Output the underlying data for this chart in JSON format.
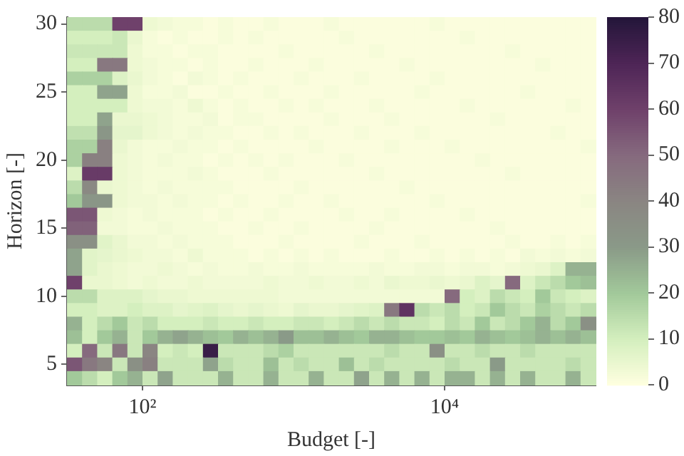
{
  "chart_data": {
    "type": "heatmap",
    "xlabel": "Budget [-]",
    "ylabel": "Horizon [-]",
    "log": "x",
    "xlim": [
      31.6,
      100000
    ],
    "xticks": [
      {
        "value": 100,
        "label": "10²"
      },
      {
        "value": 10000,
        "label": "10⁴"
      }
    ],
    "ylim": [
      3.5,
      30.5
    ],
    "yticks": [
      5,
      10,
      15,
      20,
      25,
      30
    ],
    "clim": [
      0,
      80
    ],
    "cticks": [
      0,
      10,
      20,
      30,
      40,
      50,
      60,
      70,
      80
    ],
    "cells": [
      [
        15,
        15,
        15,
        60,
        60,
        4,
        3,
        2,
        2,
        1,
        2,
        1,
        1,
        2,
        1,
        1,
        1,
        2,
        1,
        1,
        1,
        1,
        1,
        1,
        2,
        1,
        1,
        1,
        1,
        1,
        1,
        1,
        1,
        1,
        1
      ],
      [
        10,
        10,
        10,
        12,
        5,
        2,
        1,
        2,
        1,
        1,
        2,
        1,
        2,
        1,
        1,
        1,
        1,
        1,
        2,
        1,
        1,
        1,
        1,
        1,
        1,
        1,
        2,
        1,
        1,
        1,
        1,
        1,
        1,
        1,
        1
      ],
      [
        12,
        12,
        12,
        12,
        4,
        2,
        2,
        1,
        2,
        2,
        1,
        1,
        1,
        1,
        2,
        1,
        1,
        1,
        1,
        1,
        2,
        1,
        1,
        1,
        1,
        1,
        1,
        1,
        1,
        2,
        1,
        1,
        1,
        1,
        1
      ],
      [
        10,
        10,
        45,
        45,
        4,
        3,
        2,
        2,
        1,
        2,
        1,
        1,
        2,
        1,
        1,
        1,
        2,
        1,
        1,
        1,
        1,
        1,
        2,
        1,
        1,
        1,
        1,
        1,
        1,
        1,
        1,
        2,
        1,
        1,
        1
      ],
      [
        18,
        18,
        18,
        8,
        5,
        3,
        2,
        1,
        3,
        2,
        1,
        2,
        1,
        1,
        1,
        2,
        1,
        1,
        1,
        2,
        1,
        1,
        1,
        1,
        2,
        1,
        1,
        1,
        1,
        1,
        1,
        1,
        1,
        1,
        1
      ],
      [
        10,
        10,
        28,
        28,
        4,
        2,
        2,
        3,
        1,
        1,
        2,
        1,
        1,
        2,
        1,
        1,
        1,
        2,
        1,
        1,
        1,
        1,
        1,
        2,
        1,
        1,
        1,
        1,
        1,
        1,
        2,
        1,
        1,
        1,
        1
      ],
      [
        10,
        10,
        10,
        10,
        4,
        3,
        3,
        2,
        4,
        2,
        1,
        2,
        1,
        1,
        2,
        1,
        2,
        1,
        1,
        1,
        2,
        1,
        1,
        1,
        1,
        1,
        2,
        1,
        1,
        1,
        1,
        1,
        1,
        2,
        1
      ],
      [
        10,
        10,
        28,
        5,
        5,
        4,
        3,
        2,
        2,
        3,
        1,
        2,
        2,
        1,
        1,
        1,
        1,
        2,
        1,
        1,
        1,
        2,
        1,
        1,
        1,
        1,
        1,
        1,
        2,
        1,
        1,
        1,
        1,
        1,
        1
      ],
      [
        14,
        14,
        32,
        6,
        6,
        4,
        3,
        2,
        3,
        2,
        2,
        1,
        1,
        2,
        1,
        2,
        1,
        1,
        1,
        2,
        1,
        1,
        1,
        2,
        1,
        1,
        1,
        1,
        1,
        1,
        1,
        1,
        2,
        1,
        1
      ],
      [
        18,
        18,
        42,
        5,
        3,
        2,
        2,
        3,
        2,
        2,
        1,
        2,
        1,
        1,
        1,
        1,
        2,
        1,
        1,
        1,
        1,
        2,
        1,
        1,
        1,
        2,
        1,
        1,
        1,
        1,
        1,
        1,
        1,
        1,
        2
      ],
      [
        18,
        42,
        42,
        4,
        3,
        2,
        3,
        2,
        2,
        1,
        2,
        1,
        2,
        1,
        2,
        1,
        1,
        1,
        2,
        1,
        1,
        1,
        1,
        1,
        1,
        1,
        1,
        2,
        1,
        1,
        1,
        1,
        1,
        1,
        1
      ],
      [
        8,
        62,
        62,
        4,
        3,
        2,
        2,
        2,
        3,
        2,
        1,
        1,
        1,
        2,
        1,
        1,
        1,
        1,
        1,
        1,
        2,
        1,
        1,
        1,
        1,
        1,
        1,
        1,
        1,
        2,
        1,
        1,
        1,
        1,
        1
      ],
      [
        15,
        38,
        5,
        4,
        3,
        2,
        3,
        2,
        2,
        2,
        2,
        1,
        1,
        1,
        1,
        2,
        1,
        1,
        1,
        1,
        1,
        1,
        2,
        1,
        1,
        1,
        1,
        1,
        1,
        1,
        1,
        1,
        1,
        1,
        1
      ],
      [
        20,
        32,
        32,
        4,
        3,
        3,
        2,
        3,
        2,
        2,
        1,
        2,
        1,
        1,
        2,
        1,
        1,
        2,
        1,
        1,
        1,
        1,
        1,
        1,
        2,
        1,
        1,
        1,
        1,
        1,
        1,
        1,
        1,
        1,
        2
      ],
      [
        55,
        55,
        4,
        3,
        2,
        3,
        2,
        2,
        2,
        1,
        2,
        1,
        1,
        2,
        1,
        1,
        1,
        1,
        2,
        1,
        1,
        2,
        1,
        1,
        1,
        1,
        2,
        1,
        1,
        1,
        1,
        1,
        1,
        1,
        1
      ],
      [
        52,
        52,
        3,
        3,
        2,
        2,
        3,
        2,
        2,
        2,
        1,
        1,
        2,
        1,
        1,
        2,
        1,
        1,
        1,
        1,
        2,
        1,
        1,
        1,
        1,
        1,
        1,
        1,
        2,
        1,
        1,
        1,
        1,
        1,
        1
      ],
      [
        35,
        35,
        7,
        5,
        3,
        3,
        2,
        3,
        2,
        2,
        2,
        1,
        1,
        1,
        2,
        1,
        1,
        1,
        1,
        2,
        1,
        1,
        1,
        2,
        1,
        1,
        1,
        1,
        1,
        2,
        1,
        1,
        2,
        1,
        2
      ],
      [
        28,
        7,
        6,
        5,
        4,
        3,
        3,
        2,
        4,
        2,
        2,
        2,
        1,
        2,
        1,
        2,
        1,
        2,
        1,
        1,
        1,
        2,
        1,
        1,
        2,
        1,
        2,
        1,
        2,
        1,
        3,
        2,
        3,
        2,
        3
      ],
      [
        28,
        7,
        5,
        4,
        3,
        3,
        4,
        3,
        2,
        3,
        2,
        2,
        3,
        2,
        2,
        3,
        2,
        2,
        2,
        2,
        3,
        2,
        2,
        3,
        3,
        2,
        3,
        3,
        2,
        3,
        4,
        5,
        8,
        25,
        25
      ],
      [
        60,
        5,
        5,
        4,
        3,
        4,
        3,
        3,
        4,
        3,
        3,
        3,
        3,
        4,
        3,
        3,
        4,
        3,
        3,
        4,
        3,
        5,
        4,
        4,
        5,
        4,
        5,
        8,
        6,
        50,
        8,
        12,
        15,
        20,
        22
      ],
      [
        15,
        15,
        8,
        8,
        8,
        6,
        5,
        5,
        4,
        4,
        4,
        4,
        4,
        4,
        3,
        3,
        3,
        3,
        3,
        3,
        3,
        3,
        3,
        3,
        3,
        50,
        10,
        8,
        15,
        12,
        10,
        20,
        12,
        10,
        8
      ],
      [
        10,
        10,
        8,
        8,
        10,
        8,
        8,
        6,
        7,
        8,
        6,
        5,
        6,
        5,
        4,
        6,
        5,
        5,
        6,
        7,
        8,
        45,
        65,
        15,
        12,
        15,
        10,
        12,
        20,
        15,
        12,
        18,
        15,
        12,
        15
      ],
      [
        25,
        10,
        15,
        20,
        12,
        15,
        10,
        10,
        10,
        12,
        10,
        10,
        12,
        10,
        10,
        12,
        12,
        10,
        12,
        15,
        12,
        15,
        12,
        12,
        10,
        15,
        12,
        20,
        12,
        15,
        20,
        25,
        15,
        20,
        35
      ],
      [
        22,
        10,
        20,
        25,
        12,
        20,
        25,
        28,
        25,
        22,
        20,
        25,
        22,
        25,
        30,
        22,
        22,
        25,
        22,
        20,
        25,
        25,
        22,
        20,
        20,
        22,
        20,
        25,
        22,
        20,
        22,
        25,
        22,
        25,
        22
      ],
      [
        10,
        50,
        12,
        45,
        12,
        40,
        10,
        12,
        10,
        75,
        12,
        12,
        12,
        15,
        18,
        12,
        12,
        12,
        12,
        12,
        12,
        15,
        12,
        12,
        35,
        12,
        12,
        15,
        12,
        12,
        15,
        12,
        12,
        12,
        12
      ],
      [
        55,
        45,
        40,
        12,
        35,
        42,
        12,
        12,
        12,
        28,
        15,
        12,
        12,
        22,
        12,
        15,
        12,
        12,
        22,
        12,
        15,
        12,
        12,
        12,
        12,
        15,
        12,
        12,
        30,
        12,
        12,
        12,
        12,
        15,
        12
      ],
      [
        20,
        15,
        10,
        20,
        25,
        12,
        28,
        12,
        12,
        12,
        25,
        12,
        12,
        25,
        12,
        12,
        25,
        12,
        12,
        28,
        12,
        25,
        12,
        25,
        12,
        25,
        25,
        12,
        25,
        12,
        25,
        12,
        12,
        25,
        12
      ]
    ]
  }
}
